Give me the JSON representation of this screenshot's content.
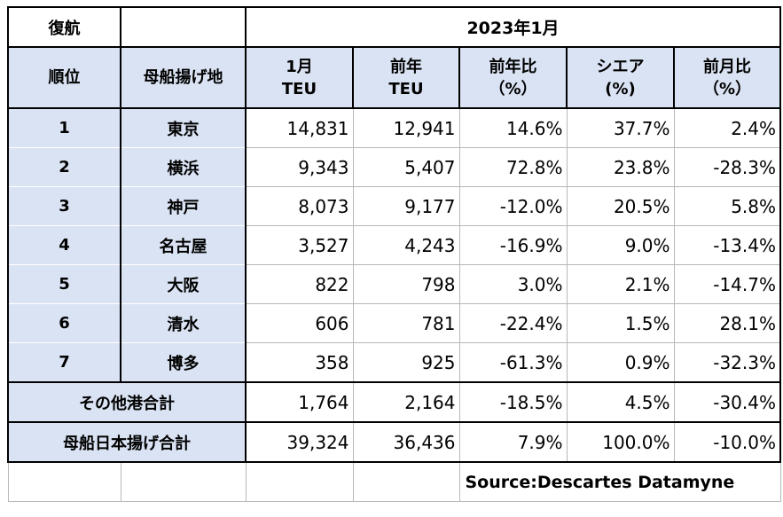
{
  "top": {
    "left_label": "復航",
    "period": "2023年1月"
  },
  "columns": {
    "rank": "順位",
    "port": "母船揚げ地",
    "teu_l1": "1月",
    "teu_l2": "TEU",
    "prev_l1": "前年",
    "prev_l2": "TEU",
    "yoy_l1": "前年比",
    "yoy_l2": "（%）",
    "share_l1": "シエア",
    "share_l2": "(%)",
    "mom_l1": "前月比",
    "mom_l2": "（%）"
  },
  "rows": [
    {
      "rank": "1",
      "port": "東京",
      "teu": "14,831",
      "prev": "12,941",
      "yoy": "14.6%",
      "share": "37.7%",
      "mom": "2.4%"
    },
    {
      "rank": "2",
      "port": "横浜",
      "teu": "9,343",
      "prev": "5,407",
      "yoy": "72.8%",
      "share": "23.8%",
      "mom": "-28.3%"
    },
    {
      "rank": "3",
      "port": "神戸",
      "teu": "8,073",
      "prev": "9,177",
      "yoy": "-12.0%",
      "share": "20.5%",
      "mom": "5.8%"
    },
    {
      "rank": "4",
      "port": "名古屋",
      "teu": "3,527",
      "prev": "4,243",
      "yoy": "-16.9%",
      "share": "9.0%",
      "mom": "-13.4%"
    },
    {
      "rank": "5",
      "port": "大阪",
      "teu": "822",
      "prev": "798",
      "yoy": "3.0%",
      "share": "2.1%",
      "mom": "-14.7%"
    },
    {
      "rank": "6",
      "port": "清水",
      "teu": "606",
      "prev": "781",
      "yoy": "-22.4%",
      "share": "1.5%",
      "mom": "28.1%"
    },
    {
      "rank": "7",
      "port": "博多",
      "teu": "358",
      "prev": "925",
      "yoy": "-61.3%",
      "share": "0.9%",
      "mom": "-32.3%"
    }
  ],
  "other": {
    "label": "その他港合計",
    "teu": "1,764",
    "prev": "2,164",
    "yoy": "-18.5%",
    "share": "4.5%",
    "mom": "-30.4%"
  },
  "total": {
    "label": "母船日本揚げ合計",
    "teu": "39,324",
    "prev": "36,436",
    "yoy": "7.9%",
    "share": "100.0%",
    "mom": "-10.0%"
  },
  "source": "Source:Descartes Datamyne",
  "colors": {
    "header_fill": "#dae3f3",
    "border": "#000000"
  }
}
